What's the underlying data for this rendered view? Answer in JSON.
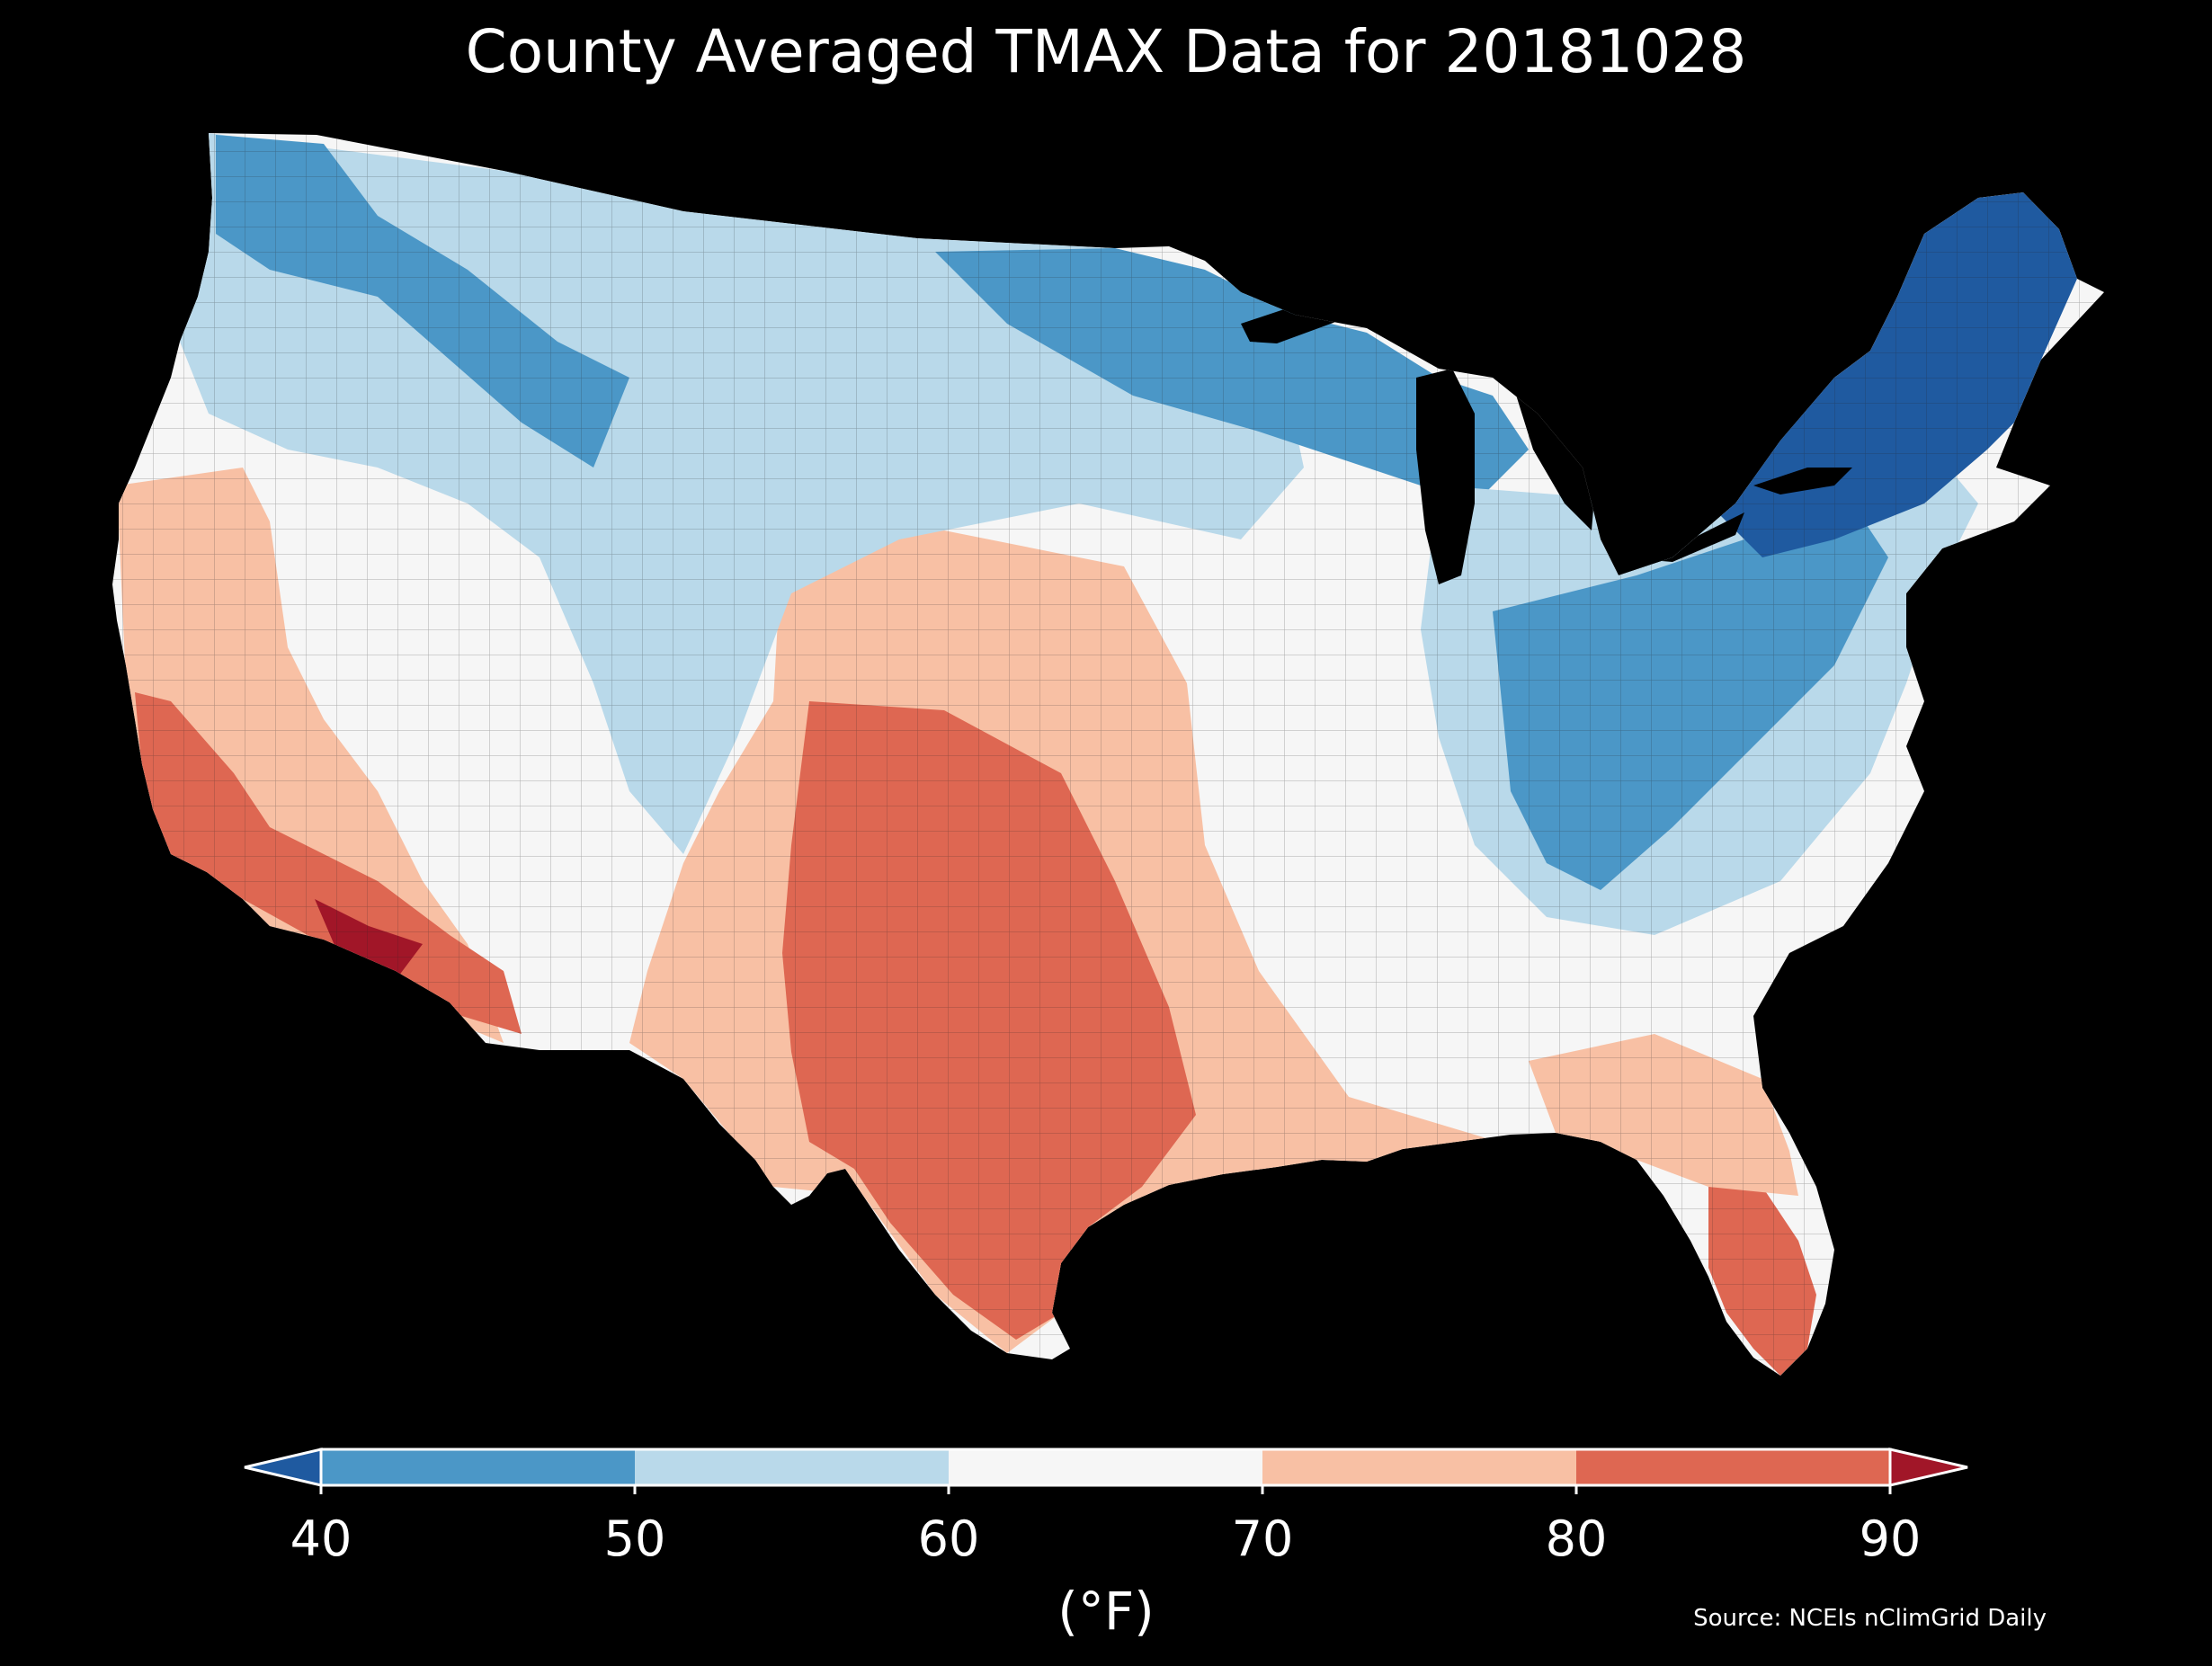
{
  "map": {
    "title": "County Averaged TMAX Data for 20181028",
    "unit_label": "(°F)",
    "source": "Source: NCEIs nClimGrid Daily",
    "region": "Contiguous United States",
    "background_color": "#000000",
    "colorbar": {
      "ticks": [
        "40",
        "50",
        "60",
        "70",
        "80",
        "90"
      ],
      "bins": [
        {
          "range": "<40",
          "color": "#1f5aa0"
        },
        {
          "range": "40-50",
          "color": "#4b97c7"
        },
        {
          "range": "50-60",
          "color": "#b9d9ea"
        },
        {
          "range": "60-70",
          "color": "#f6f6f6"
        },
        {
          "range": "70-80",
          "color": "#f8c0a4"
        },
        {
          "range": "80-90",
          "color": "#de6752"
        },
        {
          "range": ">90",
          "color": "#a11628"
        }
      ]
    }
  }
}
